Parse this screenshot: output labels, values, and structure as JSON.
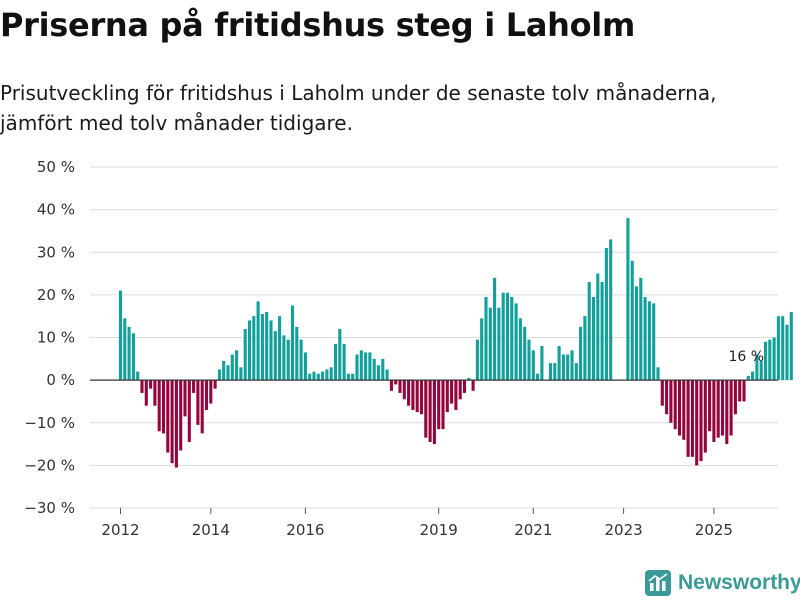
{
  "title": "Priserna på fritidshus steg i Laholm",
  "subtitle": "Prisutveckling för fritidshus i Laholm under de senaste tolv månaderna, jämfört med tolv månader tidigare.",
  "brand": "Newsworthy",
  "colors": {
    "positive": "#12a09a",
    "negative": "#94053e",
    "grid": "#dddddd",
    "zero_line": "#333333",
    "text": "#333333",
    "brand": "#3a9a98"
  },
  "chart_data": {
    "type": "bar",
    "title": "Priserna på fritidshus steg i Laholm",
    "xlabel": "",
    "ylabel": "",
    "unit": "%",
    "ylim": [
      -30,
      50
    ],
    "yticks": [
      50,
      40,
      30,
      20,
      10,
      0,
      -10,
      -20,
      -30
    ],
    "ytick_labels": [
      "50 %",
      "40 %",
      "30 %",
      "20 %",
      "10 %",
      "0 %",
      "−10 %",
      "−20 %",
      "−30 %"
    ],
    "xticks": [
      {
        "label": "2012",
        "index": 0
      },
      {
        "label": "2014",
        "index": 21
      },
      {
        "label": "2016",
        "index": 43
      },
      {
        "label": "2019",
        "index": 74
      },
      {
        "label": "2021",
        "index": 96
      },
      {
        "label": "2023",
        "index": 117
      },
      {
        "label": "2025",
        "index": 138
      }
    ],
    "annotation": {
      "text": "16 %",
      "index": 146
    },
    "values": [
      21,
      14.5,
      12.5,
      11,
      2,
      -3,
      -6,
      -2,
      -6,
      -12,
      -12.5,
      -17,
      -19.5,
      -20.5,
      -16.5,
      -8.5,
      -14.5,
      -3,
      -10.5,
      -12.5,
      -7,
      -5.5,
      -2,
      2.5,
      4.5,
      3.5,
      6,
      7,
      3,
      12,
      14,
      15,
      18.5,
      15.5,
      16,
      14,
      11.5,
      15,
      10.5,
      9.5,
      17.5,
      12.5,
      9.5,
      6.5,
      1.5,
      2,
      1.5,
      2,
      2.5,
      3,
      8.5,
      12,
      8.5,
      1.5,
      1.5,
      6,
      7,
      6.5,
      6.5,
      5,
      3.5,
      5,
      2.5,
      -2.5,
      -1,
      -3,
      -4.5,
      -6,
      -7,
      -7.5,
      -8,
      -13.5,
      -14.5,
      -15,
      -11.5,
      -11.5,
      -7.5,
      -5.5,
      -7,
      -4.5,
      -3,
      0.5,
      -2.5,
      9.5,
      14.5,
      19.5,
      17,
      24,
      17,
      20.5,
      20.5,
      19.5,
      18,
      14.5,
      12.5,
      9.5,
      7,
      1.5,
      8,
      0,
      4,
      4,
      8,
      6,
      6,
      7,
      4,
      12.5,
      15,
      23,
      19.5,
      25,
      23,
      31,
      33,
      0,
      0,
      0,
      38,
      28,
      22,
      24,
      19.5,
      18.5,
      18,
      3,
      -6,
      -8,
      -10,
      -11.5,
      -13,
      -14,
      -18,
      -18,
      -20,
      -19,
      -17,
      -12,
      -14.5,
      -13.5,
      -13,
      -15,
      -13,
      -8,
      -5,
      -5,
      1,
      2,
      6,
      4.5,
      9,
      9.5,
      10,
      15,
      15,
      13,
      16
    ]
  }
}
